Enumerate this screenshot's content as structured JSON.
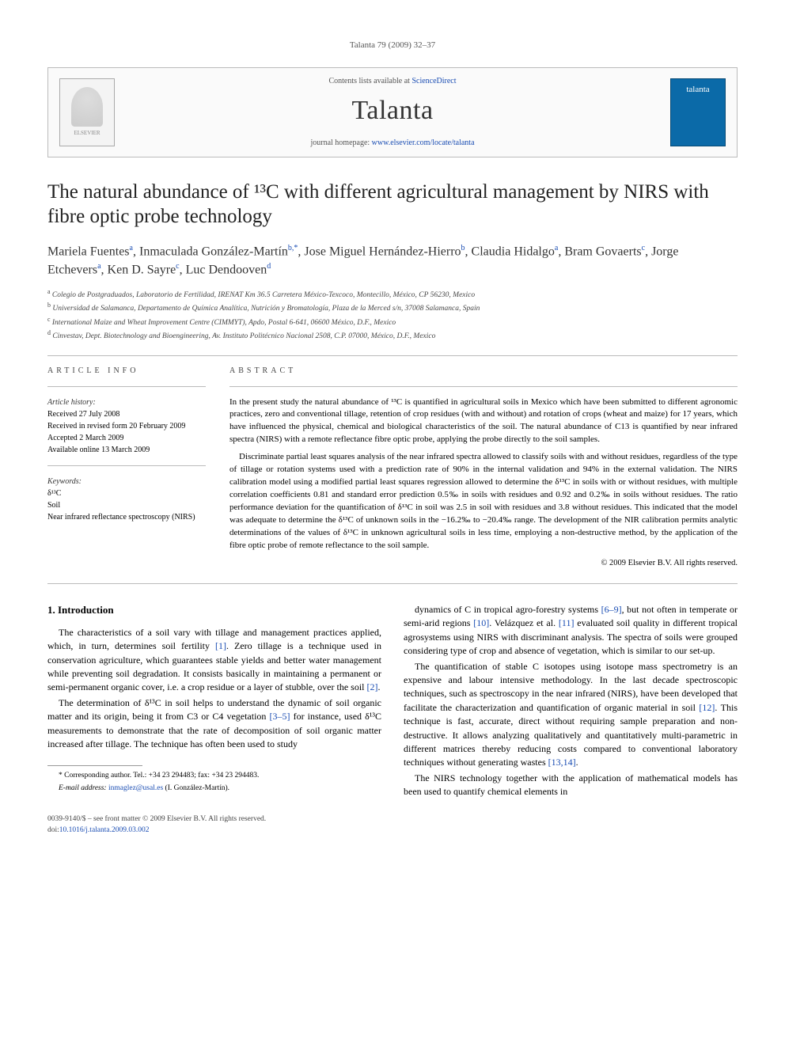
{
  "header": {
    "citation": "Talanta 79 (2009) 32–37"
  },
  "journalBox": {
    "elsevier": "ELSEVIER",
    "contentsPrefix": "Contents lists available at ",
    "contentsLink": "ScienceDirect",
    "journalName": "Talanta",
    "homepagePrefix": "journal homepage: ",
    "homepageUrl": "www.elsevier.com/locate/talanta",
    "coverLabel": "talanta"
  },
  "title": "The natural abundance of ¹³C with different agricultural management by NIRS with fibre optic probe technology",
  "authors": [
    {
      "name": "Mariela Fuentes",
      "aff": "a"
    },
    {
      "name": "Inmaculada González-Martín",
      "aff": "b,*"
    },
    {
      "name": "Jose Miguel Hernández-Hierro",
      "aff": "b"
    },
    {
      "name": "Claudia Hidalgo",
      "aff": "a"
    },
    {
      "name": "Bram Govaerts",
      "aff": "c"
    },
    {
      "name": "Jorge Etchevers",
      "aff": "a"
    },
    {
      "name": "Ken D. Sayre",
      "aff": "c"
    },
    {
      "name": "Luc Dendooven",
      "aff": "d"
    }
  ],
  "affiliations": [
    {
      "key": "a",
      "text": "Colegio de Postgraduados, Laboratorio de Fertilidad, IRENAT Km 36.5 Carretera México-Texcoco, Montecillo, México, CP 56230, Mexico"
    },
    {
      "key": "b",
      "text": "Universidad de Salamanca, Departamento de Química Analítica, Nutrición y Bromatología, Plaza de la Merced s/n, 37008 Salamanca, Spain"
    },
    {
      "key": "c",
      "text": "International Maize and Wheat Improvement Centre (CIMMYT), Apdo, Postal 6-641, 06600 México, D.F., Mexico"
    },
    {
      "key": "d",
      "text": "Cinvestav, Dept. Biotechnology and Bioengineering, Av. Instituto Politécnico Nacional 2508, C.P. 07000, México, D.F., Mexico"
    }
  ],
  "articleInfo": {
    "heading": "article info",
    "historyLabel": "Article history:",
    "history": [
      "Received 27 July 2008",
      "Received in revised form 20 February 2009",
      "Accepted 2 March 2009",
      "Available online 13 March 2009"
    ],
    "keywordsLabel": "Keywords:",
    "keywords": [
      "δ¹³C",
      "Soil",
      "Near infrared reflectance spectroscopy (NIRS)"
    ]
  },
  "abstract": {
    "heading": "abstract",
    "p1": "In the present study the natural abundance of ¹³C is quantified in agricultural soils in Mexico which have been submitted to different agronomic practices, zero and conventional tillage, retention of crop residues (with and without) and rotation of crops (wheat and maize) for 17 years, which have influenced the physical, chemical and biological characteristics of the soil. The natural abundance of C13 is quantified by near infrared spectra (NIRS) with a remote reflectance fibre optic probe, applying the probe directly to the soil samples.",
    "p2": "Discriminate partial least squares analysis of the near infrared spectra allowed to classify soils with and without residues, regardless of the type of tillage or rotation systems used with a prediction rate of 90% in the internal validation and 94% in the external validation. The NIRS calibration model using a modified partial least squares regression allowed to determine the δ¹³C in soils with or without residues, with multiple correlation coefficients 0.81 and standard error prediction 0.5‰ in soils with residues and 0.92 and 0.2‰ in soils without residues. The ratio performance deviation for the quantification of δ¹³C in soil was 2.5 in soil with residues and 3.8 without residues. This indicated that the model was adequate to determine the δ¹³C of unknown soils in the −16.2‰ to −20.4‰ range. The development of the NIR calibration permits analytic determinations of the values of δ¹³C in unknown agricultural soils in less time, employing a non-destructive method, by the application of the fibre optic probe of remote reflectance to the soil sample.",
    "copyright": "© 2009 Elsevier B.V. All rights reserved."
  },
  "body": {
    "section1Heading": "1.  Introduction",
    "p1a": "The characteristics of a soil vary with tillage and management practices applied, which, in turn, determines soil fertility ",
    "ref1": "[1]",
    "p1b": ". Zero tillage is a technique used in conservation agriculture, which guarantees stable yields and better water management while preventing soil degradation. It consists basically in maintaining a permanent or semi-permanent organic cover, i.e. a crop residue or a layer of stubble, over the soil ",
    "ref2": "[2]",
    "p1c": ".",
    "p2a": "The determination of δ¹³C in soil helps to understand the dynamic of soil organic matter and its origin, being it from C3 or C4 vegetation ",
    "ref35": "[3–5]",
    "p2b": " for instance, used δ¹³C measurements to demonstrate that the rate of decomposition of soil organic matter increased after tillage. The technique has often been used to study",
    "p3a": "dynamics of C in tropical agro-forestry systems ",
    "ref69": "[6–9]",
    "p3b": ", but not often in temperate or semi-arid regions ",
    "ref10": "[10]",
    "p3c": ". Velázquez et al. ",
    "ref11": "[11]",
    "p3d": " evaluated soil quality in different tropical agrosystems using NIRS with discriminant analysis. The spectra of soils were grouped considering type of crop and absence of vegetation, which is similar to our set-up.",
    "p4a": "The quantification of stable C isotopes using isotope mass spectrometry is an expensive and labour intensive methodology. In the last decade spectroscopic techniques, such as spectroscopy in the near infrared (NIRS), have been developed that facilitate the characterization and quantification of organic material in soil ",
    "ref12": "[12]",
    "p4b": ". This technique is fast, accurate, direct without requiring sample preparation and non-destructive. It allows analyzing qualitatively and quantitatively multi-parametric in different matrices thereby reducing costs compared to conventional laboratory techniques without generating wastes ",
    "ref1314": "[13,14]",
    "p4c": ".",
    "p5": "The NIRS technology together with the application of mathematical models has been used to quantify chemical elements in"
  },
  "footnote": {
    "corrLine": "* Corresponding author. Tel.: +34 23 294483; fax: +34 23 294483.",
    "emailLabel": "E-mail address: ",
    "email": "inmaglez@usal.es",
    "emailSuffix": " (I. González-Martín)."
  },
  "footer": {
    "issn": "0039-9140/$ – see front matter © 2009 Elsevier B.V. All rights reserved.",
    "doiLabel": "doi:",
    "doi": "10.1016/j.talanta.2009.03.002"
  },
  "colors": {
    "link": "#1a4db3",
    "coverBg": "#0b6aa8",
    "rule": "#bbbbbb",
    "text": "#000000"
  }
}
